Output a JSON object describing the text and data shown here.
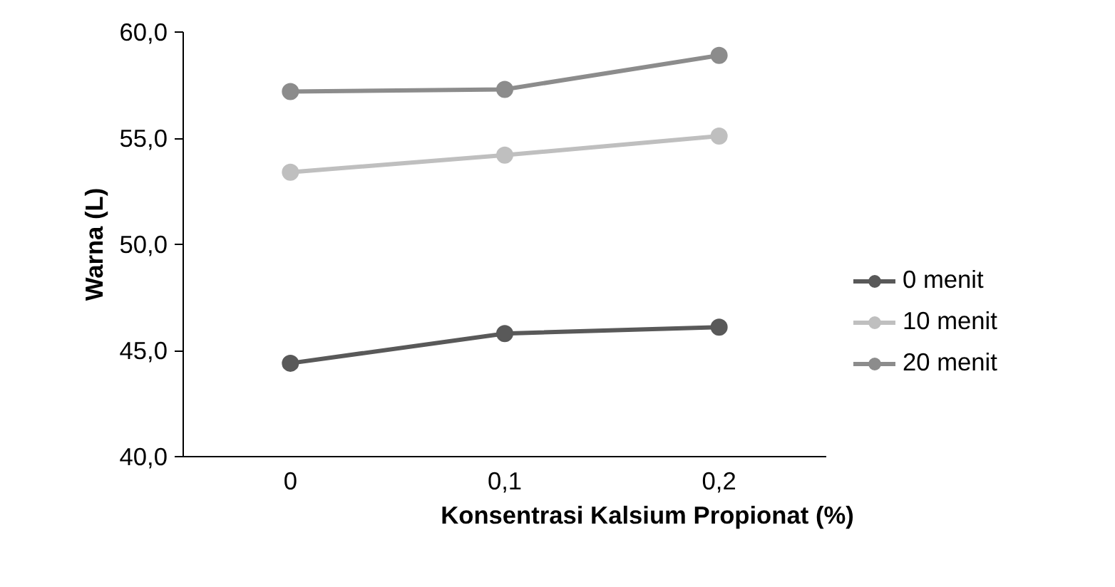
{
  "chart_data": {
    "type": "line",
    "xlabel": "Konsentrasi Kalsium Propionat (%)",
    "ylabel": "Warna (L)",
    "categories": [
      "0",
      "0,1",
      "0,2"
    ],
    "series": [
      {
        "name": "0 menit",
        "color": "#595959",
        "values": [
          44.4,
          45.8,
          46.1
        ]
      },
      {
        "name": "10 menit",
        "color": "#bfbfbf",
        "values": [
          53.4,
          54.2,
          55.1
        ]
      },
      {
        "name": "20 menit",
        "color": "#8c8c8c",
        "values": [
          57.2,
          57.3,
          58.9
        ]
      }
    ],
    "ylim": [
      40,
      60
    ],
    "yticks": [
      {
        "value": 40,
        "label": "40,0"
      },
      {
        "value": 45,
        "label": "45,0"
      },
      {
        "value": 50,
        "label": "50,0"
      },
      {
        "value": 55,
        "label": "55,0"
      },
      {
        "value": 60,
        "label": "60,0"
      }
    ],
    "grid": false,
    "legend": "right",
    "marker": "circle",
    "line_style": "solid"
  }
}
